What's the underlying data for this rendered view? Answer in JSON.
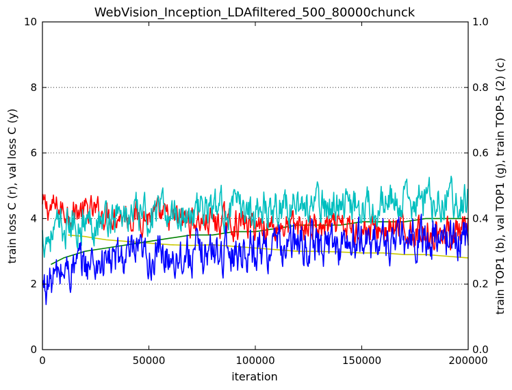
{
  "chart_data": {
    "type": "line",
    "title": "WebVision_Inception_LDAfiltered_500_80000chunck",
    "xlabel": "iteration",
    "ylabel_left": "train loss C (r), val loss C (y)",
    "ylabel_right": "train TOP1 (b), val TOP1 (g), train TOP-5 (2) (c)",
    "xlim": [
      0,
      200000
    ],
    "ylim_left": [
      0,
      10
    ],
    "ylim_right": [
      0,
      1.0
    ],
    "x_ticks": [
      "0",
      "50000",
      "100000",
      "150000",
      "200000"
    ],
    "y_ticks_left": [
      "0",
      "2",
      "4",
      "6",
      "8",
      "10"
    ],
    "y_ticks_right": [
      "0.0",
      "0.2",
      "0.4",
      "0.6",
      "0.8",
      "1.0"
    ],
    "grid": "horizontal dotted",
    "series": [
      {
        "name": "train loss C",
        "axis": "left",
        "color": "#ff0000",
        "noisy": true,
        "amp": 0.35,
        "x": [
          0,
          10000,
          20000,
          30000,
          40000,
          50000,
          60000,
          70000,
          80000,
          90000,
          100000,
          110000,
          120000,
          130000,
          140000,
          150000,
          160000,
          170000,
          180000,
          190000,
          200000
        ],
        "values": [
          4.35,
          4.25,
          4.2,
          4.15,
          4.1,
          4.05,
          4.0,
          3.95,
          3.9,
          3.85,
          3.8,
          3.78,
          3.75,
          3.72,
          3.7,
          3.68,
          3.65,
          3.62,
          3.6,
          3.58,
          3.55
        ]
      },
      {
        "name": "val loss C",
        "axis": "left",
        "color": "#c8c800",
        "noisy": false,
        "x": [
          12000,
          20000,
          30000,
          40000,
          50000,
          60000,
          70000,
          80000,
          90000,
          100000,
          110000,
          120000,
          130000,
          140000,
          150000,
          160000,
          170000,
          180000,
          190000,
          200000
        ],
        "values": [
          3.5,
          3.45,
          3.35,
          3.3,
          3.25,
          3.2,
          3.18,
          3.2,
          3.15,
          3.1,
          3.05,
          3.0,
          3.0,
          2.98,
          2.95,
          2.95,
          2.9,
          2.9,
          2.85,
          2.8
        ]
      },
      {
        "name": "train TOP1",
        "axis": "right",
        "color": "#0000ff",
        "noisy": true,
        "amp": 0.05,
        "x": [
          0,
          10000,
          20000,
          30000,
          40000,
          50000,
          60000,
          70000,
          80000,
          90000,
          100000,
          110000,
          120000,
          130000,
          140000,
          150000,
          160000,
          170000,
          180000,
          190000,
          200000
        ],
        "values": [
          0.19,
          0.24,
          0.26,
          0.27,
          0.28,
          0.28,
          0.29,
          0.29,
          0.3,
          0.3,
          0.31,
          0.31,
          0.32,
          0.32,
          0.32,
          0.33,
          0.33,
          0.33,
          0.34,
          0.34,
          0.34
        ]
      },
      {
        "name": "val TOP1",
        "axis": "right",
        "color": "#008000",
        "noisy": false,
        "x": [
          4000,
          10000,
          20000,
          30000,
          40000,
          50000,
          60000,
          70000,
          80000,
          90000,
          100000,
          110000,
          120000,
          130000,
          140000,
          150000,
          160000,
          170000,
          180000,
          190000,
          200000
        ],
        "values": [
          0.26,
          0.28,
          0.3,
          0.31,
          0.32,
          0.33,
          0.34,
          0.35,
          0.35,
          0.36,
          0.36,
          0.37,
          0.38,
          0.38,
          0.38,
          0.39,
          0.39,
          0.39,
          0.4,
          0.4,
          0.4
        ]
      },
      {
        "name": "train TOP-5",
        "axis": "right",
        "color": "#00bfbf",
        "noisy": true,
        "amp": 0.045,
        "x": [
          0,
          10000,
          20000,
          30000,
          40000,
          50000,
          60000,
          70000,
          80000,
          90000,
          100000,
          110000,
          120000,
          130000,
          140000,
          150000,
          160000,
          170000,
          180000,
          190000,
          200000
        ],
        "values": [
          0.34,
          0.37,
          0.39,
          0.4,
          0.41,
          0.41,
          0.42,
          0.42,
          0.43,
          0.43,
          0.43,
          0.44,
          0.44,
          0.44,
          0.44,
          0.45,
          0.45,
          0.45,
          0.45,
          0.46,
          0.46
        ]
      }
    ]
  }
}
